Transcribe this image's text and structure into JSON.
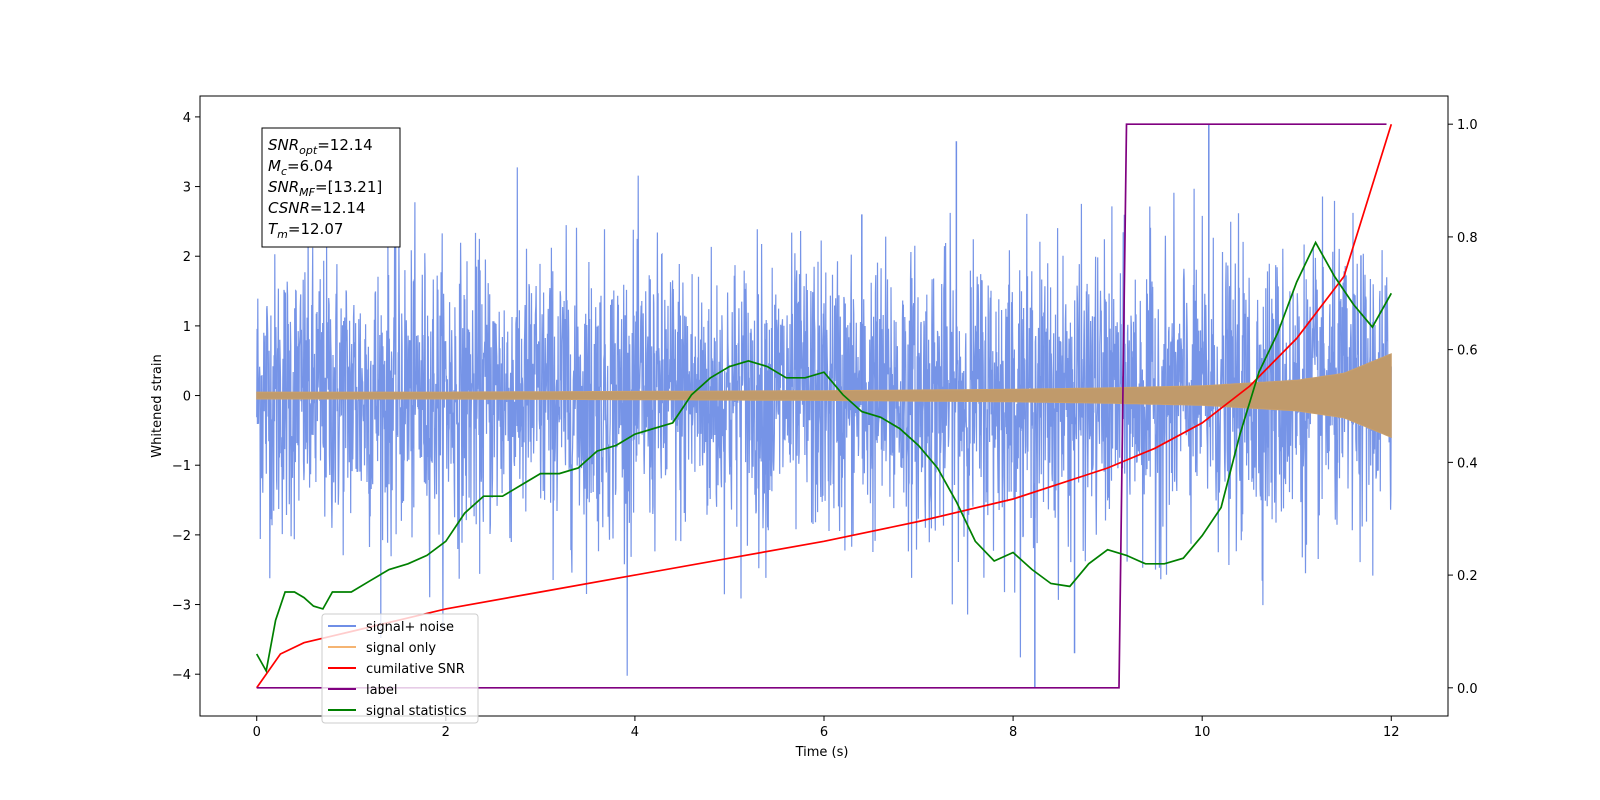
{
  "chart_data": {
    "type": "line",
    "xlabel": "Time (s)",
    "ylabel": "Whitened strain",
    "xlim": [
      -0.6,
      12.6
    ],
    "ylim_left": [
      -4.6,
      4.3
    ],
    "ylim_right": [
      -0.05,
      1.05
    ],
    "x_ticks": [
      0,
      2,
      4,
      6,
      8,
      10,
      12
    ],
    "y_ticks_left": [
      -4,
      -3,
      -2,
      -1,
      0,
      1,
      2,
      3,
      4
    ],
    "y_ticks_right": [
      0.0,
      0.2,
      0.4,
      0.6,
      0.8,
      1.0
    ],
    "x_tick_labels": [
      "0",
      "2",
      "4",
      "6",
      "8",
      "10",
      "12"
    ],
    "y_tick_labels_left": [
      "−4",
      "−3",
      "−2",
      "−1",
      "0",
      "1",
      "2",
      "3",
      "4"
    ],
    "y_tick_labels_right": [
      "0.0",
      "0.2",
      "0.4",
      "0.6",
      "0.8",
      "1.0"
    ],
    "grid": false,
    "legend_position": "bottom-left",
    "series": [
      {
        "name": "signal+ noise",
        "axis": "left",
        "color": "#6f8ee6",
        "style": "dense noise trace",
        "range": [
          -4.2,
          3.9
        ]
      },
      {
        "name": "signal only",
        "axis": "left",
        "color": "#f5b472",
        "style": "chirp envelope",
        "x": [
          0,
          2,
          4,
          6,
          8,
          9,
          10,
          11,
          11.5,
          12
        ],
        "amplitude": [
          0.05,
          0.05,
          0.06,
          0.07,
          0.09,
          0.11,
          0.14,
          0.22,
          0.32,
          0.6
        ]
      },
      {
        "name": "cumilative SNR",
        "axis": "right",
        "color": "#ff0000",
        "x": [
          0,
          0.25,
          0.5,
          1,
          2,
          3,
          4,
          5,
          6,
          7,
          8,
          9,
          9.5,
          10,
          10.5,
          11,
          11.5,
          12
        ],
        "y": [
          0.0,
          0.06,
          0.08,
          0.1,
          0.14,
          0.17,
          0.2,
          0.23,
          0.26,
          0.295,
          0.335,
          0.39,
          0.425,
          0.47,
          0.535,
          0.62,
          0.73,
          1.0
        ]
      },
      {
        "name": "label",
        "axis": "right",
        "color": "#800080",
        "x": [
          0,
          9.12,
          9.2,
          11.95
        ],
        "y": [
          0,
          0,
          1,
          1
        ]
      },
      {
        "name": "signal statistics",
        "axis": "right",
        "color": "#008000",
        "x": [
          0,
          0.1,
          0.2,
          0.3,
          0.4,
          0.5,
          0.6,
          0.7,
          0.8,
          0.9,
          1.0,
          1.2,
          1.4,
          1.6,
          1.8,
          2.0,
          2.2,
          2.4,
          2.6,
          2.8,
          3.0,
          3.2,
          3.4,
          3.6,
          3.8,
          4.0,
          4.2,
          4.4,
          4.6,
          4.8,
          5.0,
          5.2,
          5.4,
          5.6,
          5.8,
          6.0,
          6.2,
          6.4,
          6.6,
          6.8,
          7.0,
          7.2,
          7.4,
          7.6,
          7.8,
          8.0,
          8.2,
          8.4,
          8.6,
          8.8,
          9.0,
          9.2,
          9.4,
          9.6,
          9.8,
          10.0,
          10.2,
          10.4,
          10.6,
          10.8,
          11.0,
          11.2,
          11.4,
          11.6,
          11.8,
          12.0
        ],
        "y": [
          0.06,
          0.03,
          0.12,
          0.17,
          0.17,
          0.16,
          0.145,
          0.14,
          0.17,
          0.17,
          0.17,
          0.19,
          0.21,
          0.22,
          0.235,
          0.26,
          0.31,
          0.34,
          0.34,
          0.36,
          0.38,
          0.38,
          0.39,
          0.42,
          0.43,
          0.45,
          0.46,
          0.47,
          0.52,
          0.55,
          0.57,
          0.58,
          0.57,
          0.55,
          0.55,
          0.56,
          0.52,
          0.49,
          0.48,
          0.46,
          0.43,
          0.39,
          0.33,
          0.26,
          0.225,
          0.24,
          0.21,
          0.185,
          0.18,
          0.22,
          0.245,
          0.235,
          0.22,
          0.22,
          0.23,
          0.27,
          0.32,
          0.45,
          0.56,
          0.63,
          0.72,
          0.79,
          0.73,
          0.68,
          0.64,
          0.7
        ]
      }
    ],
    "annotation": [
      {
        "main": "SNR",
        "sub": "opt",
        "value": "=12.14"
      },
      {
        "main": "M",
        "sub": "c",
        "value": "=6.04"
      },
      {
        "main": "SNR",
        "sub": "MF",
        "value": "=[13.21]"
      },
      {
        "main": "CSNR",
        "sub": "",
        "value": "=12.14"
      },
      {
        "main": "T",
        "sub": "m",
        "value": "=12.07"
      }
    ]
  }
}
